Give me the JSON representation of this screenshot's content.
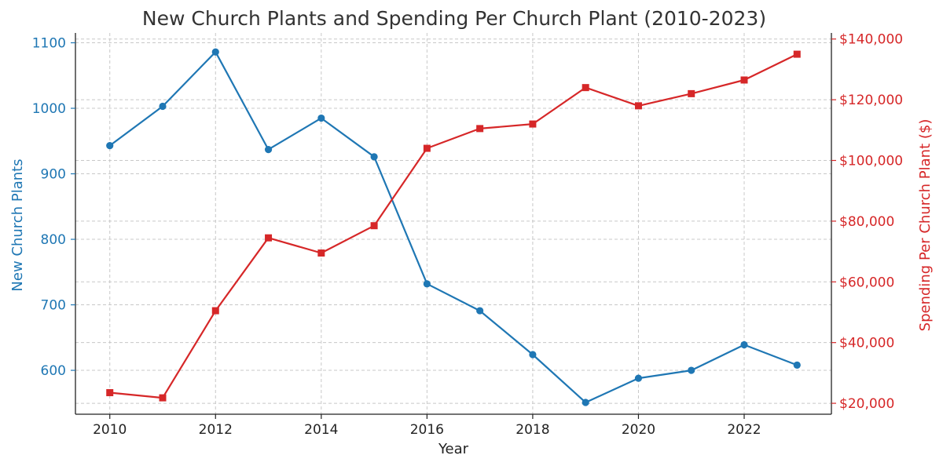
{
  "colors": {
    "left_series": "#1f77b4",
    "right_series": "#d62728",
    "axis": "#222222",
    "grid": "#c8c8c8"
  },
  "chart_data": {
    "type": "line",
    "title": "New Church Plants and Spending Per Church Plant (2010-2023)",
    "xlabel": "Year",
    "x": [
      2010,
      2011,
      2012,
      2013,
      2014,
      2015,
      2016,
      2017,
      2018,
      2019,
      2020,
      2021,
      2022,
      2023
    ],
    "x_ticks": [
      "2010",
      "2012",
      "2014",
      "2016",
      "2018",
      "2020",
      "2022"
    ],
    "xlim": [
      2009.35,
      2023.65
    ],
    "grid": true,
    "series": [
      {
        "axis": "left",
        "marker": "circle",
        "values": [
          943,
          1003,
          1086,
          937,
          985,
          926,
          732,
          691,
          624,
          551,
          588,
          600,
          639,
          608
        ]
      },
      {
        "axis": "right",
        "marker": "square",
        "values": [
          23500,
          21800,
          50500,
          74500,
          69500,
          78500,
          104000,
          110500,
          112000,
          124000,
          118000,
          122000,
          126500,
          135000
        ]
      }
    ],
    "y_left": {
      "label": "New Church Plants",
      "ticks": [
        "600",
        "700",
        "800",
        "900",
        "1000",
        "1100"
      ],
      "tick_values": [
        600,
        700,
        800,
        900,
        1000,
        1100
      ],
      "ylim": [
        533,
        1115
      ]
    },
    "y_right": {
      "label": "Spending Per Church Plant ($)",
      "ticks": [
        "$20,000",
        "$40,000",
        "$60,000",
        "$80,000",
        "$100,000",
        "$120,000",
        "$140,000"
      ],
      "tick_values": [
        20000,
        40000,
        60000,
        80000,
        100000,
        120000,
        140000
      ],
      "ylim": [
        16400,
        142000
      ]
    }
  }
}
